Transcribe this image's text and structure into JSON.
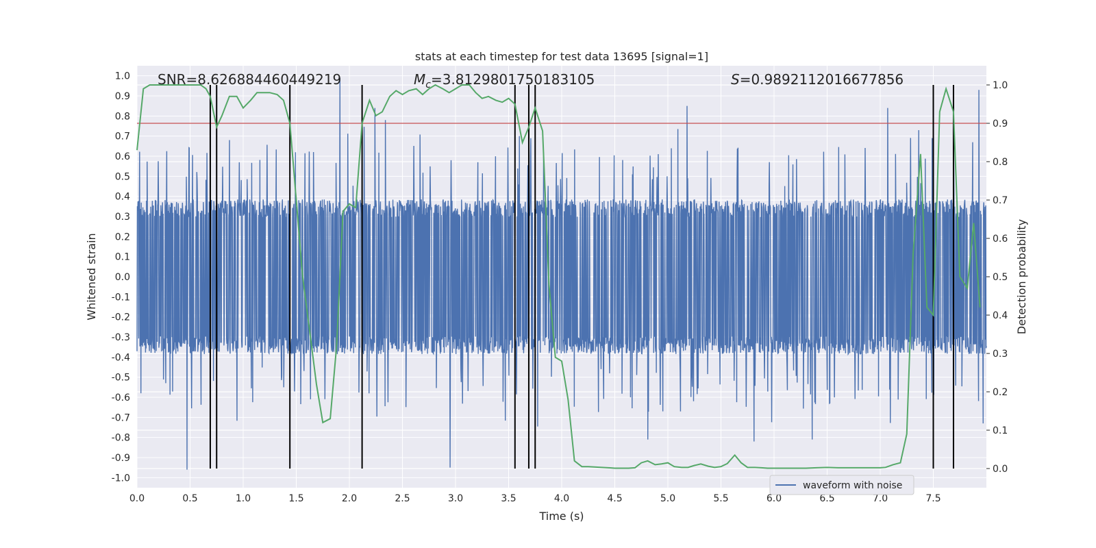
{
  "chart_data": {
    "type": "line",
    "title": "stats at each timestep for test data 13695 [signal=1]",
    "xlabel": "Time (s)",
    "ylabel_left": "Whitened strain",
    "ylabel_right": "Detection probability",
    "xlim": [
      0.0,
      8.0
    ],
    "ylim_left": [
      -1.05,
      1.05
    ],
    "ylim_right": [
      -0.05,
      1.05
    ],
    "x_ticks": [
      "0.0",
      "0.5",
      "1.0",
      "1.5",
      "2.0",
      "2.5",
      "3.0",
      "3.5",
      "4.0",
      "4.5",
      "5.0",
      "5.5",
      "6.0",
      "6.5",
      "7.0",
      "7.5"
    ],
    "y_left_ticks": [
      "1.0",
      "0.9",
      "0.8",
      "0.7",
      "0.6",
      "0.5",
      "0.4",
      "0.3",
      "0.2",
      "0.1",
      "0.0",
      "-0.1",
      "-0.2",
      "-0.3",
      "-0.4",
      "-0.5",
      "-0.6",
      "-0.7",
      "-0.8",
      "-0.9",
      "-1.0"
    ],
    "y_right_ticks": [
      "1.0",
      "0.9",
      "0.8",
      "0.7",
      "0.6",
      "0.5",
      "0.4",
      "0.3",
      "0.2",
      "0.1",
      "0.0"
    ],
    "annotations": {
      "snr": "SNR=8.626884460449219",
      "mc_symbol": "M",
      "mc_sub": "c",
      "mc_value": "=3.8129801750183105",
      "s_symbol": "S",
      "s_value": "=0.9892112016677856"
    },
    "threshold_probability": 0.9,
    "vertical_lines_s": [
      0.69,
      0.75,
      1.44,
      2.12,
      3.56,
      3.69,
      3.75,
      7.5,
      7.69
    ],
    "series": [
      {
        "name": "waveform with noise",
        "color": "#4c72b0",
        "axis": "left",
        "style": "noise",
        "core_amplitude": 0.35,
        "spike_extremes": [
          [
            0.47,
            -0.96
          ],
          [
            0.87,
            0.68
          ],
          [
            1.91,
            0.99
          ],
          [
            2.24,
            0.84
          ],
          [
            2.34,
            0.78
          ],
          [
            2.95,
            -0.95
          ],
          [
            3.6,
            0.7
          ],
          [
            4.81,
            -0.81
          ],
          [
            5.18,
            0.85
          ],
          [
            5.81,
            -0.82
          ],
          [
            6.36,
            -0.81
          ],
          [
            7.07,
            0.84
          ],
          [
            7.49,
            0.69
          ],
          [
            7.93,
            0.93
          ],
          [
            7.97,
            -0.73
          ]
        ]
      },
      {
        "name": "detection probability",
        "color": "#55a868",
        "axis": "right",
        "x": [
          0.0,
          0.06,
          0.12,
          0.2,
          0.3,
          0.4,
          0.5,
          0.6,
          0.65,
          0.69,
          0.75,
          0.8,
          0.87,
          0.94,
          1.0,
          1.07,
          1.13,
          1.19,
          1.25,
          1.32,
          1.38,
          1.44,
          1.5,
          1.56,
          1.63,
          1.69,
          1.75,
          1.82,
          1.88,
          1.94,
          2.0,
          2.06,
          2.12,
          2.19,
          2.25,
          2.31,
          2.38,
          2.44,
          2.5,
          2.56,
          2.63,
          2.69,
          2.75,
          2.81,
          2.88,
          2.94,
          3.0,
          3.06,
          3.13,
          3.19,
          3.25,
          3.31,
          3.38,
          3.44,
          3.5,
          3.56,
          3.63,
          3.69,
          3.75,
          3.82,
          3.88,
          3.94,
          4.0,
          4.06,
          4.12,
          4.19,
          4.25,
          4.31,
          4.38,
          4.44,
          4.5,
          4.56,
          4.63,
          4.69,
          4.75,
          4.81,
          4.88,
          4.94,
          5.0,
          5.06,
          5.13,
          5.19,
          5.25,
          5.31,
          5.38,
          5.44,
          5.5,
          5.56,
          5.63,
          5.69,
          5.75,
          5.82,
          5.88,
          5.94,
          6.0,
          6.1,
          6.2,
          6.3,
          6.4,
          6.5,
          6.6,
          6.7,
          6.8,
          6.9,
          7.0,
          7.05,
          7.12,
          7.19,
          7.25,
          7.31,
          7.38,
          7.44,
          7.5,
          7.56,
          7.62,
          7.69,
          7.75,
          7.82,
          7.88,
          7.94
        ],
        "values": [
          0.83,
          0.99,
          1.0,
          1.0,
          1.0,
          1.0,
          1.0,
          1.0,
          0.99,
          0.97,
          0.89,
          0.92,
          0.97,
          0.97,
          0.94,
          0.96,
          0.98,
          0.98,
          0.98,
          0.975,
          0.96,
          0.9,
          0.7,
          0.5,
          0.35,
          0.22,
          0.12,
          0.13,
          0.32,
          0.67,
          0.69,
          0.68,
          0.9,
          0.96,
          0.92,
          0.93,
          0.97,
          0.985,
          0.975,
          0.985,
          0.99,
          0.975,
          0.99,
          1.0,
          0.99,
          0.98,
          0.99,
          1.0,
          1.0,
          0.98,
          0.965,
          0.97,
          0.96,
          0.955,
          0.965,
          0.95,
          0.85,
          0.89,
          0.94,
          0.88,
          0.48,
          0.29,
          0.28,
          0.18,
          0.02,
          0.005,
          0.005,
          0.004,
          0.003,
          0.002,
          0.001,
          0.001,
          0.001,
          0.002,
          0.015,
          0.02,
          0.01,
          0.012,
          0.015,
          0.005,
          0.003,
          0.003,
          0.008,
          0.012,
          0.006,
          0.003,
          0.005,
          0.013,
          0.035,
          0.015,
          0.003,
          0.003,
          0.002,
          0.001,
          0.001,
          0.001,
          0.001,
          0.001,
          0.002,
          0.003,
          0.002,
          0.002,
          0.002,
          0.002,
          0.002,
          0.003,
          0.01,
          0.015,
          0.09,
          0.56,
          0.82,
          0.42,
          0.4,
          0.93,
          0.99,
          0.93,
          0.5,
          0.47,
          0.64,
          0.42
        ]
      }
    ],
    "legend": {
      "label": "waveform with noise",
      "position": "lower-right"
    }
  },
  "colors": {
    "plot_bg": "#eaeaf2",
    "grid": "#ffffff",
    "waveform": "#4c72b0",
    "probability": "#55a868",
    "threshold": "#c44e52",
    "vlines": "#000000"
  }
}
